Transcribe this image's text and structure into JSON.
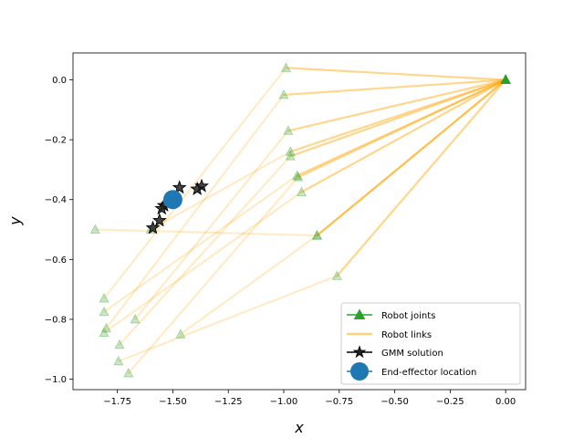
{
  "chart_data": {
    "type": "scatter",
    "xlabel": "x",
    "ylabel": "y",
    "xlim": [
      -1.95,
      0.09
    ],
    "ylim": [
      -1.035,
      0.09
    ],
    "x_ticks": [
      -1.75,
      -1.5,
      -1.25,
      -1.0,
      -0.75,
      -0.5,
      -0.25,
      0.0
    ],
    "x_tick_labels": [
      "−1.75",
      "−1.50",
      "−1.25",
      "−1.00",
      "−0.75",
      "−0.50",
      "−0.25",
      "0.00"
    ],
    "y_ticks": [
      0.0,
      -0.2,
      -0.4,
      -0.6,
      -0.8,
      -1.0
    ],
    "y_tick_labels": [
      "0.0",
      "−0.2",
      "−0.4",
      "−0.6",
      "−0.8",
      "−1.0"
    ],
    "grid": false,
    "legend_position": "bottom-right",
    "colors": {
      "joint_fill": "#2ca02c",
      "joint_edge": "#2ca02c",
      "link": "#ffa500",
      "gmm": "#000000",
      "end_effector": "#1f77b4"
    },
    "series": [
      {
        "name": "Robot joints",
        "marker": "triangle",
        "chains": [
          [
            [
              0.0,
              0.0
            ],
            [
              -0.99,
              0.04
            ],
            [
              -1.81,
              -0.73
            ]
          ],
          [
            [
              0.0,
              0.0
            ],
            [
              -1.0,
              -0.05
            ],
            [
              -1.8,
              -0.83
            ]
          ],
          [
            [
              0.0,
              0.0
            ],
            [
              -0.98,
              -0.17
            ],
            [
              -1.67,
              -0.8
            ]
          ],
          [
            [
              0.0,
              0.0
            ],
            [
              -0.97,
              -0.24
            ],
            [
              -1.6,
              -0.5
            ]
          ],
          [
            [
              0.0,
              0.0
            ],
            [
              -0.97,
              -0.255
            ],
            [
              -1.74,
              -0.885
            ]
          ],
          [
            [
              0.0,
              0.0
            ],
            [
              -0.94,
              -0.32
            ],
            [
              -1.81,
              -0.775
            ]
          ],
          [
            [
              0.0,
              0.0
            ],
            [
              -0.935,
              -0.325
            ],
            [
              -1.7,
              -0.98
            ]
          ],
          [
            [
              0.0,
              0.0
            ],
            [
              -0.92,
              -0.375
            ],
            [
              -1.81,
              -0.845
            ]
          ],
          [
            [
              0.0,
              0.0
            ],
            [
              -0.85,
              -0.52
            ],
            [
              -1.85,
              -0.5
            ]
          ],
          [
            [
              0.0,
              0.0
            ],
            [
              -0.76,
              -0.655
            ],
            [
              -1.745,
              -0.94
            ]
          ],
          [
            [
              0.0,
              0.0
            ],
            [
              -0.85,
              -0.52
            ],
            [
              -1.465,
              -0.85
            ]
          ]
        ]
      },
      {
        "name": "Robot links"
      },
      {
        "name": "GMM solution",
        "marker": "star",
        "points": [
          [
            -1.37,
            -0.355
          ],
          [
            -1.39,
            -0.365
          ],
          [
            -1.47,
            -0.36
          ],
          [
            -1.54,
            -0.42
          ],
          [
            -1.56,
            -0.47
          ],
          [
            -1.59,
            -0.495
          ],
          [
            -1.55,
            -0.43
          ]
        ]
      },
      {
        "name": "End-effector location",
        "marker": "circle",
        "points": [
          [
            -1.5,
            -0.4
          ]
        ]
      }
    ]
  }
}
